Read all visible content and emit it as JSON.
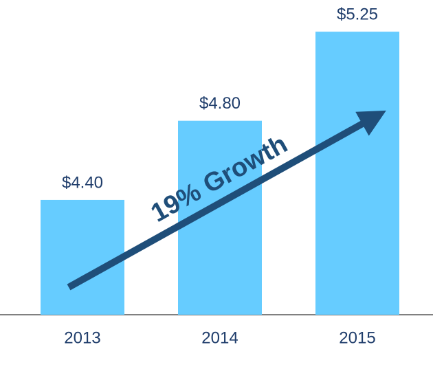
{
  "chart_data": {
    "type": "bar",
    "categories": [
      "2013",
      "2014",
      "2015"
    ],
    "values": [
      4.4,
      4.8,
      5.25
    ],
    "value_labels": [
      "$4.40",
      "$4.80",
      "$5.25"
    ],
    "color": "#66ccff",
    "ylim": [
      3.82,
      5.41
    ],
    "annotation": "19% Growth"
  }
}
